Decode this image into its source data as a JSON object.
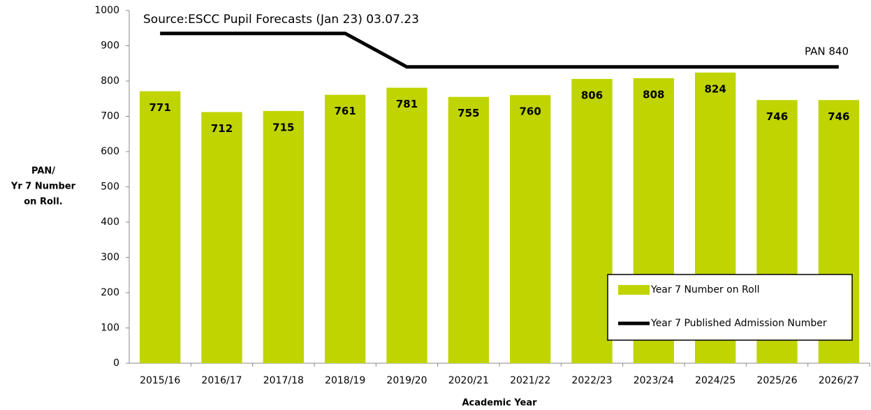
{
  "chart_data": {
    "type": "bar_line",
    "annotations": [
      "Source:ESCC Pupil Forecasts (Jan 23) 03.07.23",
      "PAN 840"
    ],
    "ylabel": [
      "PAN/",
      "Yr 7 Number",
      "on Roll."
    ],
    "xlabel": "Academic Year",
    "categories": [
      "2015/16",
      "2016/17",
      "2017/18",
      "2018/19",
      "2019/20",
      "2020/21",
      "2021/22",
      "2022/23",
      "2023/24",
      "2024/25",
      "2025/26",
      "2026/27"
    ],
    "series": [
      {
        "name": "Year 7 Number on Roll",
        "type": "bar",
        "color": "#bfd400",
        "values": [
          771,
          712,
          715,
          761,
          781,
          755,
          760,
          806,
          808,
          824,
          746,
          746
        ]
      },
      {
        "name": "Year 7 Published Admission Number",
        "type": "line",
        "color": "#000000",
        "values": [
          935,
          935,
          935,
          935,
          840,
          840,
          840,
          840,
          840,
          840,
          840,
          840
        ]
      }
    ],
    "ylim": [
      0,
      1000
    ],
    "yticks": [
      0,
      100,
      200,
      300,
      400,
      500,
      600,
      700,
      800,
      900,
      1000
    ],
    "grid": false,
    "legend": "lower right"
  }
}
